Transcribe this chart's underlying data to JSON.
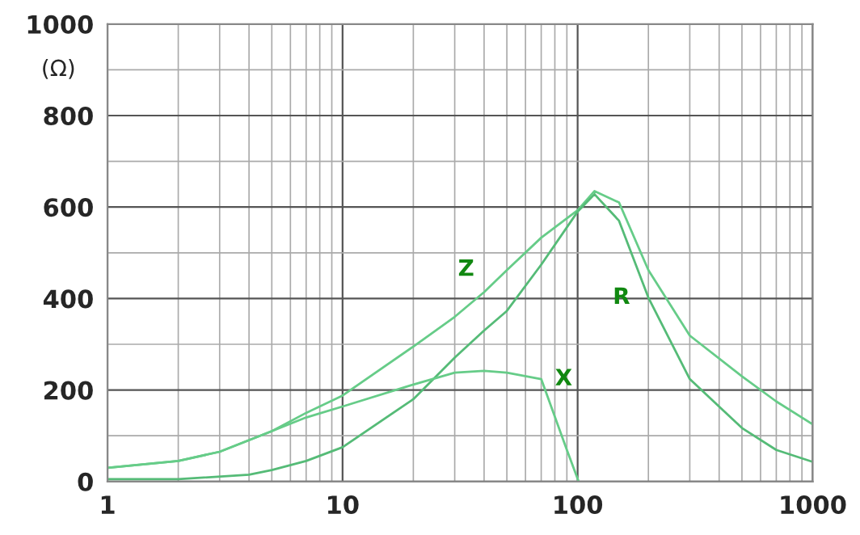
{
  "chart_data": {
    "type": "line",
    "ylabel": "(Ω)",
    "log": "x",
    "grid": true,
    "xlim": [
      1,
      1000
    ],
    "ylim": [
      0,
      1000
    ],
    "xticks": [
      1,
      10,
      100,
      1000
    ],
    "yticks": [
      0,
      200,
      400,
      600,
      800,
      1000
    ],
    "series": [
      {
        "color": "#66cc88",
        "x": [
          1,
          2,
          3,
          5,
          7,
          10,
          20,
          30,
          40,
          50,
          70,
          100,
          118,
          150,
          200,
          300,
          500,
          700,
          1000
        ],
        "values": [
          30,
          45,
          65,
          110,
          150,
          188,
          295,
          360,
          414,
          462,
          533,
          593,
          635,
          610,
          462,
          319,
          230,
          175,
          125
        ]
      },
      {
        "color": "#55bb77",
        "x": [
          1,
          2,
          4,
          5,
          7,
          10,
          20,
          30,
          40,
          50,
          70,
          100,
          118,
          150,
          200,
          300,
          500,
          700,
          1000
        ],
        "values": [
          5,
          5,
          15,
          25,
          45,
          75,
          180,
          271,
          330,
          373,
          474,
          590,
          628,
          570,
          402,
          224,
          117,
          69,
          43
        ]
      },
      {
        "color": "#66cc88",
        "x": [
          1,
          2,
          3,
          5,
          7,
          10,
          20,
          30,
          40,
          50,
          70,
          90,
          101
        ],
        "values": [
          30,
          45,
          65,
          110,
          140,
          164,
          212,
          238,
          242,
          238,
          224,
          69,
          0
        ]
      }
    ],
    "annotations": [
      {
        "text": "Z",
        "x": 40,
        "y": 414
      },
      {
        "text": "R",
        "x": 200,
        "y": 402
      },
      {
        "text": "X",
        "x": 70,
        "y": 224
      }
    ]
  }
}
